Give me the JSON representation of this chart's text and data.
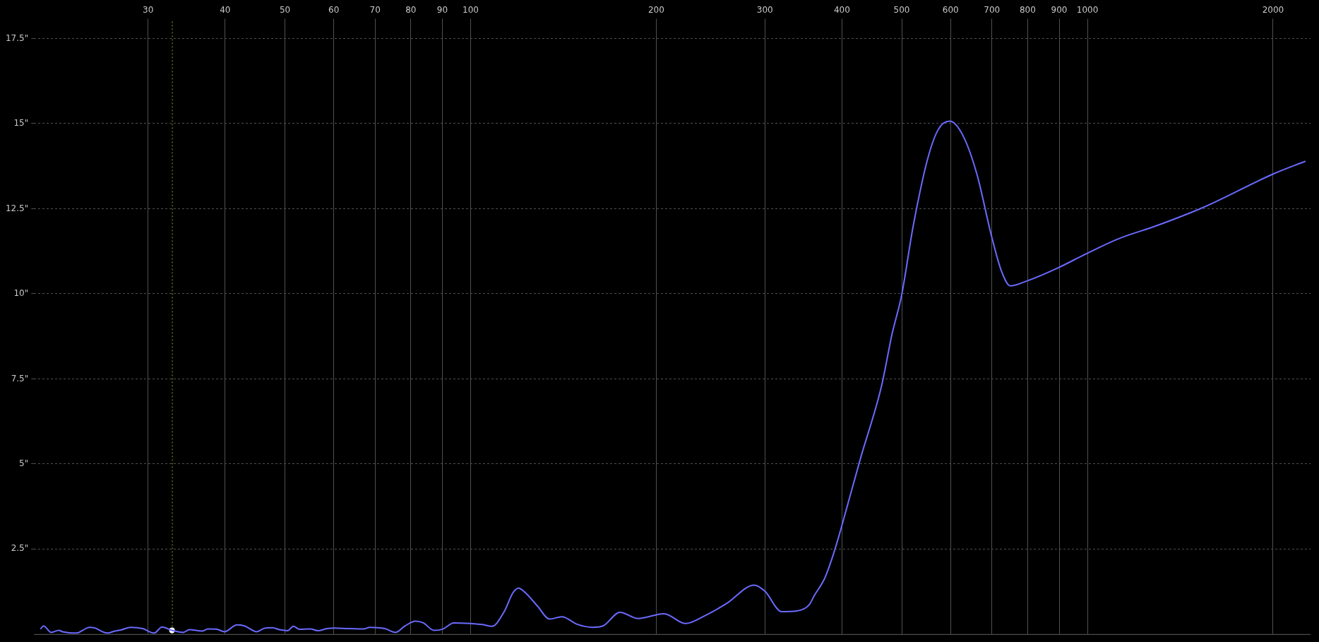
{
  "chart_data": {
    "type": "line",
    "x": [
      20.1,
      20.3,
      20.9,
      21.5,
      21.8,
      23.0,
      23.5,
      24.1,
      24.6,
      25.3,
      25.8,
      26.5,
      27.1,
      28.1,
      29.4,
      30.7,
      31.6,
      32.8,
      34.2,
      35.0,
      36.7,
      37.5,
      38.8,
      39.9,
      41.8,
      43.0,
      45.0,
      46.3,
      47.7,
      49.0,
      50.5,
      51.6,
      52.8,
      55.0,
      56.5,
      58.5,
      60.2,
      63.4,
      67.1,
      68.6,
      72.6,
      75.6,
      78.3,
      81.4,
      83.8,
      87.2,
      90.2,
      93.9,
      100,
      104.6,
      108.3,
      113.2,
      117.2,
      119.6,
      122.6,
      128.4,
      134.3,
      140.6,
      148.8,
      157.6,
      163.9,
      174.6,
      186.9,
      205.9,
      223.0,
      240.3,
      260.1,
      288.3,
      300,
      319.4,
      338.1,
      353.9,
      361,
      374.6,
      381,
      389.8,
      399.9,
      428.3,
      463.7,
      482.3,
      499.7,
      522.0,
      550.4,
      572.4,
      597.9,
      627.9,
      661.6,
      699.2,
      725.4,
      749.9,
      798.9,
      898.3,
      996.8,
      1121,
      1295,
      1538,
      1996,
      2253
    ],
    "series": [
      {
        "color": "#6a6aff",
        "values": [
          0.16,
          0.24,
          0.05,
          0.11,
          0.07,
          0.03,
          0.11,
          0.2,
          0.18,
          0.07,
          0.03,
          0.09,
          0.12,
          0.2,
          0.16,
          0.03,
          0.21,
          0.11,
          0.05,
          0.13,
          0.09,
          0.15,
          0.14,
          0.07,
          0.27,
          0.24,
          0.07,
          0.17,
          0.19,
          0.13,
          0.1,
          0.23,
          0.14,
          0.15,
          0.1,
          0.16,
          0.18,
          0.16,
          0.15,
          0.2,
          0.16,
          0.05,
          0.24,
          0.38,
          0.33,
          0.11,
          0.15,
          0.33,
          0.31,
          0.28,
          0.23,
          0.64,
          1.22,
          1.35,
          1.22,
          0.82,
          0.44,
          0.51,
          0.29,
          0.2,
          0.24,
          0.64,
          0.46,
          0.6,
          0.31,
          0.55,
          0.9,
          1.44,
          1.26,
          0.66,
          0.68,
          0.86,
          1.14,
          1.62,
          1.96,
          2.5,
          3.19,
          5.14,
          7.29,
          8.82,
          9.95,
          12.0,
          13.94,
          14.81,
          15.07,
          14.66,
          13.53,
          11.69,
          10.67,
          10.23,
          10.38,
          10.77,
          11.18,
          11.61,
          12.0,
          12.53,
          13.51,
          13.89
        ]
      },
      {
        "type": "scatter",
        "color": "#ffffff",
        "x": [
          32.8
        ],
        "values": [
          0.11
        ],
        "marker": "circle"
      }
    ],
    "xlim": [
      19.6,
      2300
    ],
    "ylim": [
      0,
      18
    ],
    "xticks": [
      30,
      40,
      50,
      60,
      70,
      80,
      90,
      100,
      200,
      300,
      400,
      500,
      600,
      700,
      800,
      900,
      1000,
      2000
    ],
    "yticks": [
      {
        "value": 2.5,
        "label": "2.5\""
      },
      {
        "value": 5,
        "label": "5\""
      },
      {
        "value": 7.5,
        "label": "7.5\""
      },
      {
        "value": 10,
        "label": "10\""
      },
      {
        "value": 12.5,
        "label": "12.5\""
      },
      {
        "value": 15,
        "label": "15\""
      },
      {
        "value": 17.5,
        "label": "17.5\""
      }
    ],
    "log": "x",
    "grid": true,
    "ref_lines": [
      {
        "axis": "x",
        "value": 32.8,
        "color": "#9aa800",
        "line_style": "dotted"
      }
    ]
  }
}
